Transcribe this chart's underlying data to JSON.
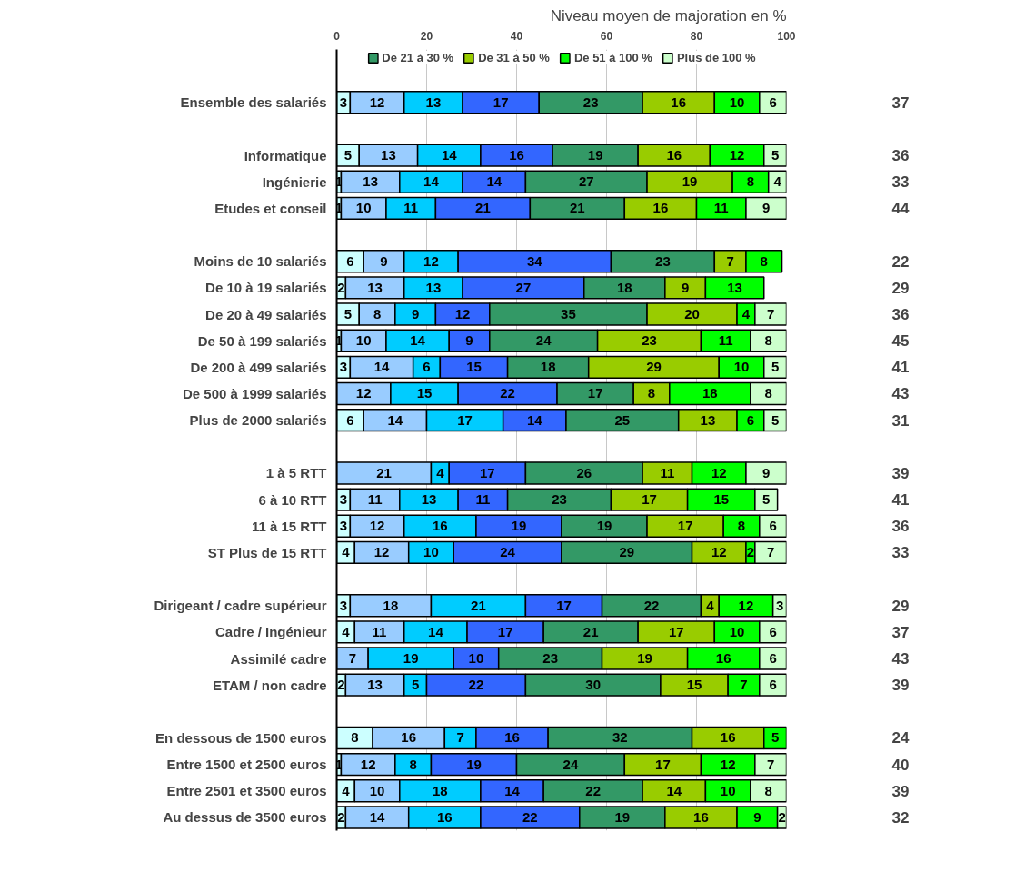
{
  "chart_data": {
    "type": "bar",
    "orientation": "horizontal",
    "stacked": true,
    "data_labels": true,
    "legend": "top",
    "grid": "x",
    "xlim": [
      0,
      100
    ],
    "xticks": [
      0,
      20,
      40,
      60,
      80,
      100
    ],
    "categories": [
      "Ensemble des salariés",
      null,
      "Informatique",
      "Ingénierie",
      "Etudes et conseil",
      null,
      "Moins de 10 salariés",
      "De 10 à 19 salariés",
      "De 20 à 49 salariés",
      "De 50 à 199 salariés",
      "De 200 à 499 salariés",
      "De 500 à 1999 salariés",
      "Plus de 2000 salariés",
      null,
      "1 à 5 RTT",
      "6 à 10 RTT",
      "11 à 15 RTT",
      "ST Plus de 15 RTT",
      null,
      "Dirigeant / cadre supérieur",
      "Cadre / Ingénieur",
      "Assimilé cadre",
      "ETAM / non cadre",
      null,
      "En dessous de 1500 euros",
      "Entre 1500 et 2500 euros",
      "Entre 2501 et 3500 euros",
      "Au dessus de 3500 euros"
    ],
    "series": [
      {
        "color": "#ccffff",
        "values": [
          3,
          null,
          5,
          1,
          1,
          null,
          6,
          2,
          5,
          1,
          3,
          null,
          6,
          null,
          null,
          3,
          3,
          4,
          null,
          3,
          4,
          null,
          2,
          null,
          8,
          1,
          4,
          2
        ]
      },
      {
        "color": "#99ccff",
        "values": [
          12,
          null,
          13,
          13,
          10,
          null,
          9,
          13,
          8,
          10,
          14,
          12,
          14,
          null,
          21,
          11,
          12,
          12,
          null,
          18,
          11,
          7,
          13,
          null,
          16,
          12,
          10,
          14
        ]
      },
      {
        "color": "#00ccff",
        "values": [
          13,
          null,
          14,
          14,
          11,
          null,
          12,
          13,
          9,
          14,
          6,
          15,
          17,
          null,
          4,
          13,
          16,
          10,
          null,
          21,
          14,
          19,
          5,
          null,
          7,
          8,
          18,
          16
        ]
      },
      {
        "color": "#3366ff",
        "values": [
          17,
          null,
          16,
          14,
          21,
          null,
          34,
          27,
          12,
          9,
          15,
          22,
          14,
          null,
          17,
          11,
          19,
          24,
          null,
          17,
          17,
          10,
          22,
          null,
          16,
          19,
          14,
          22
        ]
      },
      {
        "name": "De 21 à 30 %",
        "color": "#339966",
        "values": [
          23,
          null,
          19,
          27,
          21,
          null,
          23,
          18,
          35,
          24,
          18,
          17,
          25,
          null,
          26,
          23,
          19,
          29,
          null,
          22,
          21,
          23,
          30,
          null,
          32,
          24,
          22,
          19
        ]
      },
      {
        "name": "De 31 à 50 %",
        "color": "#99cc00",
        "values": [
          16,
          null,
          16,
          19,
          16,
          null,
          7,
          9,
          20,
          23,
          29,
          8,
          13,
          null,
          11,
          17,
          17,
          12,
          null,
          4,
          17,
          19,
          15,
          null,
          16,
          17,
          14,
          16
        ]
      },
      {
        "name": "De 51 à 100 %",
        "color": "#00ff00",
        "values": [
          10,
          null,
          12,
          8,
          11,
          null,
          8,
          13,
          4,
          11,
          10,
          18,
          6,
          null,
          12,
          15,
          8,
          2,
          null,
          12,
          10,
          16,
          7,
          null,
          5,
          12,
          10,
          9
        ]
      },
      {
        "name": "Plus de 100 %",
        "color": "#ccffcc",
        "values": [
          6,
          null,
          5,
          4,
          9,
          null,
          null,
          null,
          7,
          8,
          5,
          8,
          5,
          null,
          9,
          5,
          6,
          7,
          null,
          3,
          6,
          6,
          6,
          null,
          null,
          7,
          8,
          2
        ]
      }
    ],
    "annotations": [
      "Niveau moyen de majoration en %",
      "37",
      "36",
      "33",
      "44",
      "22",
      "29",
      "36",
      "45",
      "41",
      "43",
      "31",
      "39",
      "41",
      "36",
      "33",
      "29",
      "37",
      "43",
      "39",
      "24",
      "40",
      "39",
      "32"
    ]
  }
}
